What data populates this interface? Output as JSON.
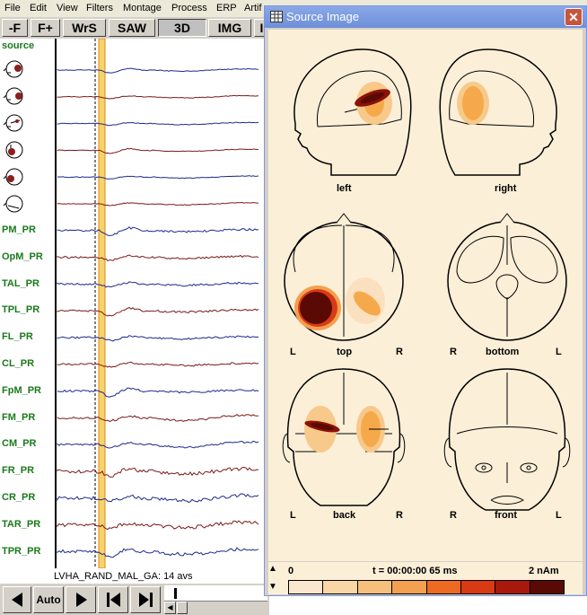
{
  "menu": [
    "File",
    "Edit",
    "View",
    "Filters",
    "Montage",
    "Process",
    "ERP",
    "Artif"
  ],
  "toolbar": [
    "-F",
    "F+",
    "WrS",
    "SAW",
    "3D",
    "IMG",
    "I"
  ],
  "channels": {
    "header": "source",
    "names": [
      "PM_PR",
      "OpM_PR",
      "TAL_PR",
      "TPL_PR",
      "FL_PR",
      "CL_PR",
      "FpM_PR",
      "FM_PR",
      "CM_PR",
      "FR_PR",
      "CR_PR",
      "TAR_PR",
      "TPR_PR"
    ]
  },
  "status_text": "LVHA_RAND_MAL_GA: 14 avs",
  "navbar": {
    "auto_label": "Auto"
  },
  "source_window": {
    "title": "Source Image",
    "views": {
      "left": "left",
      "right": "right",
      "top": "top",
      "bottom": "bottom",
      "back": "back",
      "front": "front",
      "L": "L",
      "R": "R"
    },
    "scale": {
      "min": "0",
      "time": "t = 00:00:00  65 ms",
      "max": "2 nAm",
      "colors": [
        "#fbe7d0",
        "#f8d6a6",
        "#f6c07c",
        "#f3a050",
        "#ee6a22",
        "#d83a14",
        "#a8180c",
        "#5a0a05"
      ]
    }
  }
}
